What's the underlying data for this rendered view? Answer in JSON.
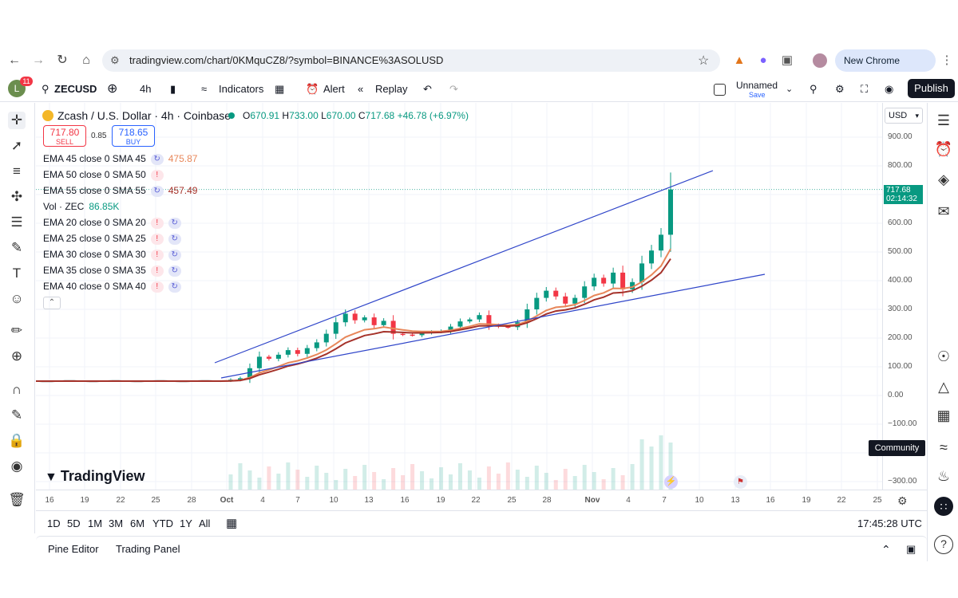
{
  "browser": {
    "url": "tradingview.com/chart/0KMquCZ8/?symbol=BINANCE%3ASOLUSD",
    "new_chrome_label": "New Chrome available"
  },
  "toolbar": {
    "avatar_letter": "L",
    "notification_count": "11",
    "symbol": "ZECUSD",
    "interval": "4h",
    "indicators_label": "Indicators",
    "alert_label": "Alert",
    "replay_label": "Replay",
    "layout_name": "Unnamed",
    "save_label": "Save",
    "publish_label": "Publish"
  },
  "legend": {
    "title": "Zcash / U.S. Dollar · 4h · Coinbase",
    "ohlc": {
      "o_label": "O",
      "o": "670.91",
      "h_label": "H",
      "h": "733.00",
      "l_label": "L",
      "l": "670.00",
      "c_label": "C",
      "c": "717.68",
      "change": "+46.78 (+6.97%)"
    },
    "sell_price": "717.80",
    "sell_label": "SELL",
    "spread": "0.85",
    "buy_price": "718.65",
    "buy_label": "BUY",
    "indicators": [
      {
        "label": "EMA 45 close 0 SMA 45",
        "badge": "cycle",
        "value": "475.87",
        "color": "#e8875a"
      },
      {
        "label": "EMA 50 close 0 SMA 50",
        "badge": "warn",
        "value": "",
        "color": "#131722"
      },
      {
        "label": "EMA 55 close 0 SMA 55",
        "badge": "cycle",
        "value": "457.49",
        "color": "#a5322a"
      },
      {
        "label": "Vol · ZEC",
        "badge": "",
        "value": "86.85K",
        "color": "#089981"
      },
      {
        "label": "EMA 20 close 0 SMA 20",
        "badge": "warn-cycle",
        "value": "",
        "color": "#131722"
      },
      {
        "label": "EMA 25 close 0 SMA 25",
        "badge": "warn-cycle",
        "value": "",
        "color": "#131722"
      },
      {
        "label": "EMA 30 close 0 SMA 30",
        "badge": "warn-cycle",
        "value": "",
        "color": "#131722"
      },
      {
        "label": "EMA 35 close 0 SMA 35",
        "badge": "warn-cycle",
        "value": "",
        "color": "#131722"
      },
      {
        "label": "EMA 40 close 0 SMA 40",
        "badge": "warn-cycle",
        "value": "",
        "color": "#131722"
      }
    ]
  },
  "price_scale": {
    "currency": "USD",
    "ticks": [
      "900.00",
      "800.00",
      "700.00",
      "600.00",
      "500.00",
      "400.00",
      "300.00",
      "200.00",
      "100.00",
      "0.00",
      "−100.00",
      "−300.00"
    ],
    "last_price": "717.68",
    "countdown": "02:14:32"
  },
  "time_scale": {
    "ticks": [
      "16",
      "19",
      "22",
      "25",
      "28",
      "Oct",
      "4",
      "7",
      "10",
      "13",
      "16",
      "19",
      "22",
      "25",
      "28",
      "Nov",
      "4",
      "7",
      "10",
      "13",
      "16",
      "19",
      "22",
      "25"
    ]
  },
  "range_bar": {
    "ranges": [
      "1D",
      "5D",
      "1M",
      "3M",
      "6M",
      "YTD",
      "1Y",
      "All"
    ],
    "clock": "17:45:28 UTC"
  },
  "panel_tabs": {
    "pine_editor": "Pine Editor",
    "trading_panel": "Trading Panel"
  },
  "tooltip": {
    "community": "Community"
  },
  "brand": {
    "logo_text": "TradingView"
  },
  "colors": {
    "up": "#089981",
    "down": "#f23645",
    "trendline": "#2f45c9",
    "ema_fast": "#e8875a",
    "ema_slow": "#a5322a",
    "accent": "#2962ff"
  },
  "chart_data": {
    "type": "candlestick",
    "title": "Zcash / U.S. Dollar · 4h · Coinbase",
    "xlabel": "",
    "ylabel": "",
    "ylim": [
      -300,
      900
    ],
    "x_start": "Sep 16",
    "x_end": "Nov 7",
    "close_approx": [
      50,
      50,
      50,
      50,
      50,
      50,
      50,
      50,
      50,
      51,
      51,
      52,
      55,
      60,
      95,
      135,
      128,
      142,
      158,
      145,
      165,
      185,
      215,
      255,
      285,
      262,
      272,
      245,
      260,
      215,
      212,
      210,
      218,
      222,
      225,
      240,
      258,
      265,
      280,
      245,
      240,
      238,
      255,
      300,
      340,
      365,
      345,
      320,
      340,
      380,
      410,
      390,
      428,
      370,
      395,
      460,
      505,
      560,
      717.68
    ],
    "ema_45_last": 475.87,
    "ema_55_last": 457.49,
    "volume_last": "86.85K",
    "grid": true
  }
}
